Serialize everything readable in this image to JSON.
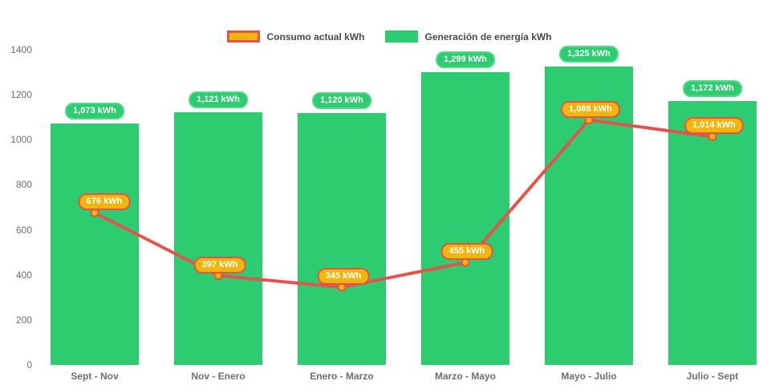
{
  "legend": {
    "consumo_label": "Consumo actual kWh",
    "generacion_label": "Generación de energía kWh"
  },
  "colors": {
    "bar_green": "#2ecc71",
    "bar_pill_border": "#53d88c",
    "line_red": "#e2544d",
    "point_gold": "#f2b50c",
    "gold_pill_border": "#e8543f",
    "axis_text": "#6e6e6e",
    "legend_text": "#4a4a4a"
  },
  "chart_data": {
    "type": "bar",
    "subtype": "bar-with-line-overlay",
    "title": "",
    "xlabel": "",
    "ylabel": "",
    "categories": [
      "Sept - Nov",
      "Nov - Enero",
      "Enero - Marzo",
      "Marzo - Mayo",
      "Mayo - Julio",
      "Julio - Sept"
    ],
    "series": [
      {
        "name": "Generación de energía kWh",
        "type": "bar",
        "values": [
          1073,
          1121,
          1120,
          1299,
          1325,
          1172
        ],
        "labels": [
          "1,073 kWh",
          "1,121 kWh",
          "1,120 kWh",
          "1,299 kWh",
          "1,325 kWh",
          "1,172 kWh"
        ],
        "color": "#2ecc71"
      },
      {
        "name": "Consumo actual kWh",
        "type": "line",
        "values": [
          676,
          397,
          345,
          455,
          1088,
          1014
        ],
        "labels": [
          "676 kWh",
          "397 kWh",
          "345 kWh",
          "455 kWh",
          "1,088 kWh",
          "1,014 kWh"
        ],
        "color": "#e2544d",
        "point_color": "#f2b50c"
      }
    ],
    "yaxis": {
      "min": 0,
      "max": 1400,
      "step": 200
    },
    "grid": false,
    "legend_position": "top-center"
  }
}
